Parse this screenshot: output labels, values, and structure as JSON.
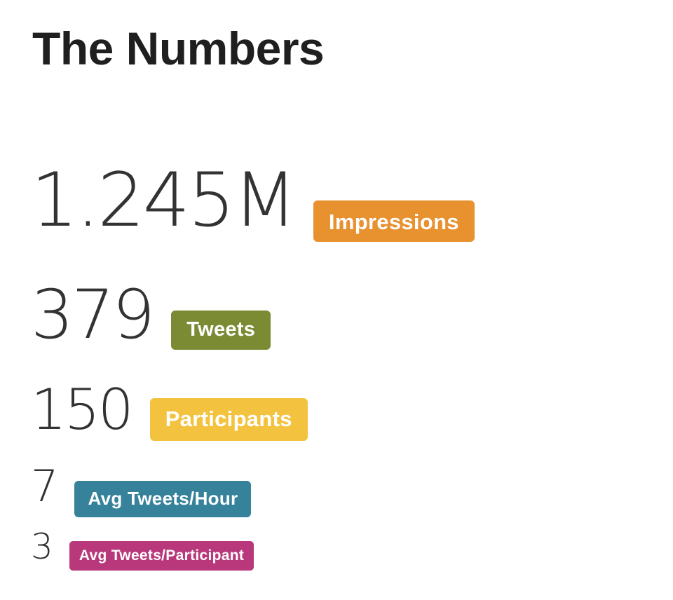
{
  "page": {
    "title": "The Numbers"
  },
  "stats": [
    {
      "value": "1.245M",
      "label": "Impressions",
      "color": "#E8912F"
    },
    {
      "value": "379",
      "label": "Tweets",
      "color": "#7A8B33"
    },
    {
      "value": "150",
      "label": "Participants",
      "color": "#F3C33F"
    },
    {
      "value": "7",
      "label": "Avg Tweets/Hour",
      "color": "#35829A"
    },
    {
      "value": "3",
      "label": "Avg Tweets/Participant",
      "color": "#B8387B"
    }
  ]
}
